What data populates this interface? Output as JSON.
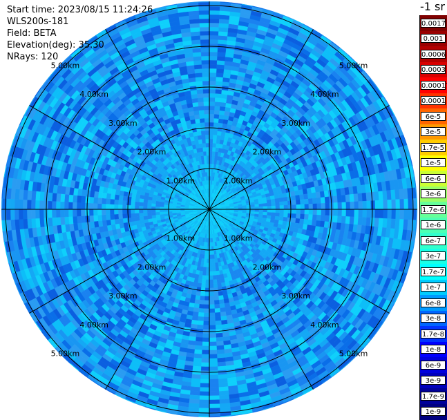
{
  "info": {
    "start_time": "Start time: 2023/08/15 11:24:26",
    "instrument": "WLS200s-181",
    "field": "Field: BETA",
    "elevation": "Elevation(deg): 35.30",
    "nrays": "NRays: 120"
  },
  "chart_data": {
    "type": "polar_ppi",
    "field": "BETA",
    "elevation_deg": 35.3,
    "nrays": 120,
    "range_rings_km": [
      1,
      2,
      3,
      4,
      5
    ],
    "ring_labels": [
      "1.00km",
      "2.00km",
      "3.00km",
      "4.00km",
      "5.00km"
    ],
    "max_range_km": 5.1,
    "spokes_deg": [
      0,
      30,
      60,
      90,
      120,
      150,
      180,
      210,
      240,
      270,
      300,
      330
    ],
    "colorbar": {
      "units": "-1 sr",
      "labels": [
        "0.0017",
        "0.001",
        "0.0006",
        "0.0003",
        "0.00017",
        "0.0001",
        "6e-5",
        "3e-5",
        "1.7e-5",
        "1e-5",
        "6e-6",
        "3e-6",
        "1.7e-6",
        "1e-6",
        "6e-7",
        "3e-7",
        "1.7e-7",
        "1e-7",
        "6e-8",
        "3e-8",
        "1.7e-8",
        "1e-8",
        "6e-9",
        "3e-9",
        "1.7e-9",
        "1e-9"
      ],
      "colors": [
        "#800000",
        "#990000",
        "#b30000",
        "#d90000",
        "#ff0000",
        "#ff3300",
        "#ff6600",
        "#ff9900",
        "#ffcc00",
        "#ffff00",
        "#ccff33",
        "#99ff66",
        "#66ff99",
        "#4dffb3",
        "#33ffcc",
        "#19ffe6",
        "#00ffff",
        "#00ccff",
        "#0099ff",
        "#0066ff",
        "#0033ff",
        "#0000ff",
        "#0000dd",
        "#0000bb",
        "#000099",
        "#000080"
      ]
    }
  }
}
